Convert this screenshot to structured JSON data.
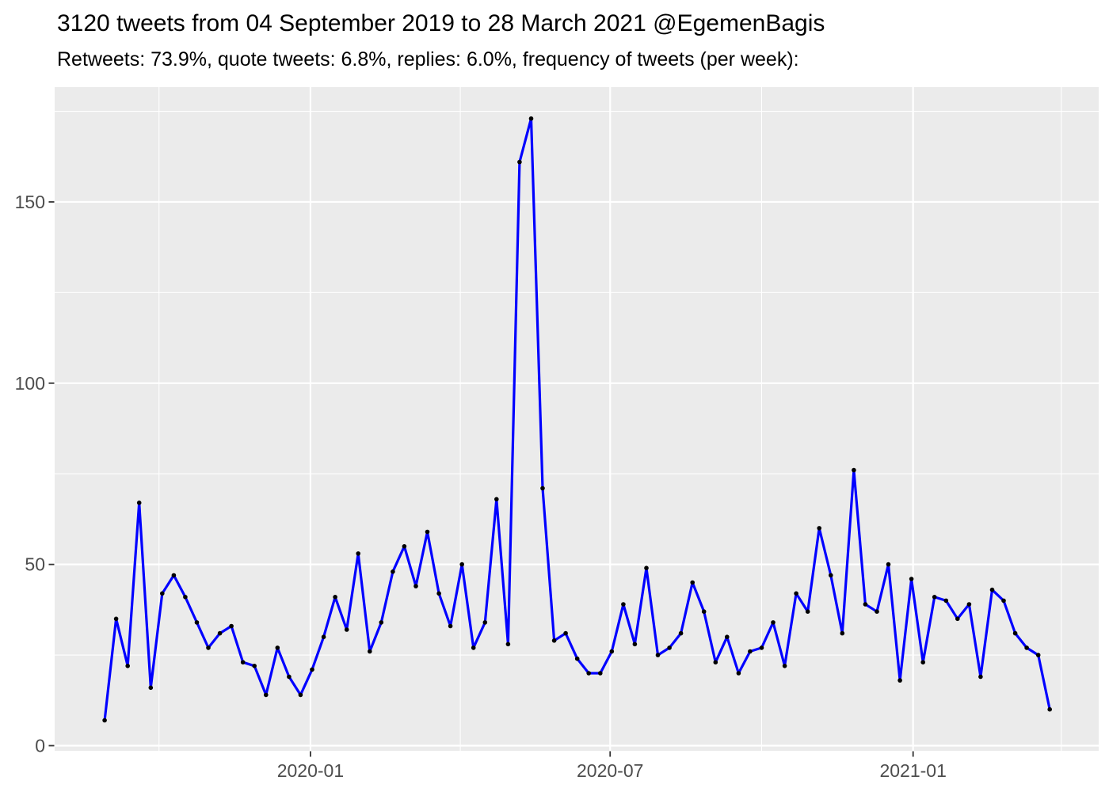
{
  "chart_data": {
    "type": "line",
    "title": "3120 tweets from 04 September 2019 to 28 March 2021 @EgemenBagis",
    "subtitle": "Retweets: 73.9%, quote tweets: 6.8%, replies: 6.0%, frequency of tweets (per week):",
    "xlabel": "",
    "ylabel": "",
    "legend": "none",
    "grid": "on",
    "ylim": [
      0,
      181
    ],
    "series_name": "tweets-per-week",
    "x": [
      "2019-08-29",
      "2019-09-05",
      "2019-09-12",
      "2019-09-19",
      "2019-09-26",
      "2019-10-03",
      "2019-10-10",
      "2019-10-17",
      "2019-10-24",
      "2019-10-31",
      "2019-11-07",
      "2019-11-14",
      "2019-11-21",
      "2019-11-28",
      "2019-12-05",
      "2019-12-12",
      "2019-12-19",
      "2019-12-26",
      "2020-01-02",
      "2020-01-09",
      "2020-01-16",
      "2020-01-23",
      "2020-01-30",
      "2020-02-06",
      "2020-02-13",
      "2020-02-20",
      "2020-02-27",
      "2020-03-05",
      "2020-03-12",
      "2020-03-19",
      "2020-03-26",
      "2020-04-02",
      "2020-04-09",
      "2020-04-16",
      "2020-04-23",
      "2020-04-30",
      "2020-05-07",
      "2020-05-14",
      "2020-05-21",
      "2020-05-28",
      "2020-06-04",
      "2020-06-11",
      "2020-06-18",
      "2020-06-25",
      "2020-07-02",
      "2020-07-09",
      "2020-07-16",
      "2020-07-23",
      "2020-07-30",
      "2020-08-06",
      "2020-08-13",
      "2020-08-20",
      "2020-08-27",
      "2020-09-03",
      "2020-09-10",
      "2020-09-17",
      "2020-09-24",
      "2020-10-01",
      "2020-10-08",
      "2020-10-15",
      "2020-10-22",
      "2020-10-29",
      "2020-11-05",
      "2020-11-12",
      "2020-11-19",
      "2020-11-26",
      "2020-12-03",
      "2020-12-10",
      "2020-12-17",
      "2020-12-24",
      "2020-12-31",
      "2021-01-07",
      "2021-01-14",
      "2021-01-21",
      "2021-01-28",
      "2021-02-04",
      "2021-02-11",
      "2021-02-18",
      "2021-02-25",
      "2021-03-04",
      "2021-03-11",
      "2021-03-18",
      "2021-03-25"
    ],
    "values": [
      7,
      35,
      22,
      67,
      16,
      42,
      47,
      41,
      34,
      27,
      31,
      33,
      23,
      22,
      14,
      27,
      19,
      14,
      21,
      30,
      41,
      32,
      53,
      26,
      34,
      48,
      55,
      44,
      59,
      42,
      33,
      50,
      27,
      34,
      68,
      28,
      161,
      173,
      71,
      29,
      31,
      24,
      20,
      20,
      26,
      39,
      28,
      49,
      25,
      27,
      31,
      45,
      37,
      23,
      30,
      20,
      26,
      27,
      34,
      22,
      42,
      37,
      60,
      47,
      31,
      76,
      39,
      37,
      50,
      18,
      46,
      23,
      41,
      40,
      35,
      39,
      19,
      43,
      40,
      31,
      27,
      25,
      10
    ],
    "x_axis": {
      "major_ticks": [
        {
          "label": "2020-01",
          "date": "2020-01-01"
        },
        {
          "label": "2020-07",
          "date": "2020-07-01"
        },
        {
          "label": "2021-01",
          "date": "2021-01-01"
        }
      ],
      "minor_gridlines": [
        "2019-10-01",
        "2020-04-01",
        "2020-10-01",
        "2021-04-01"
      ]
    },
    "y_axis": {
      "major_ticks": [
        {
          "label": "0",
          "value": 0
        },
        {
          "label": "50",
          "value": 50
        },
        {
          "label": "100",
          "value": 100
        },
        {
          "label": "150",
          "value": 150
        }
      ],
      "minor_gridlines": [
        25,
        75,
        125,
        175
      ]
    },
    "colors": {
      "line": "#0000FF",
      "point": "#000000",
      "panel_bg": "#EBEBEB",
      "gridline": "#FFFFFF",
      "axis_text": "#4D4D4D",
      "tick_mark": "#333333",
      "title_text": "#000000"
    }
  }
}
